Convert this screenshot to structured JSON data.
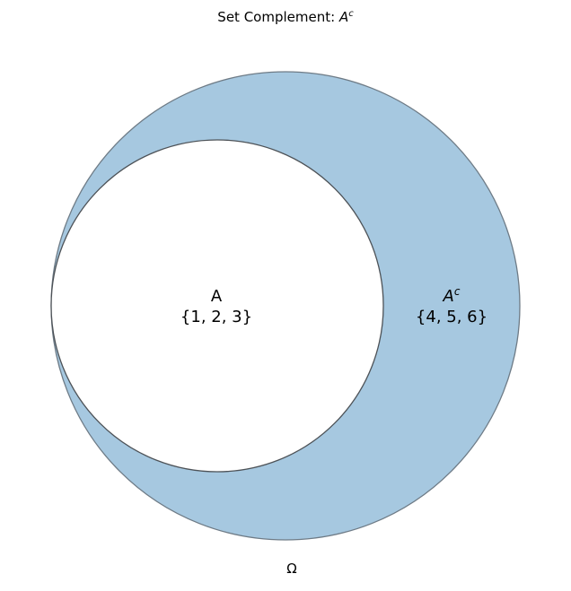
{
  "title": {
    "prefix": "Set Complement: ",
    "symbol": "A",
    "superscript": "c"
  },
  "universe": {
    "label": "Ω",
    "fill_color": "#a6c8e0",
    "stroke_color": "#6e7b86"
  },
  "set_a": {
    "name": "A",
    "elements": "{1, 2, 3}",
    "fill_color": "#ffffff",
    "stroke_color": "#4d5257"
  },
  "complement": {
    "symbol": "A",
    "superscript": "c",
    "elements": "{4, 5, 6}"
  }
}
